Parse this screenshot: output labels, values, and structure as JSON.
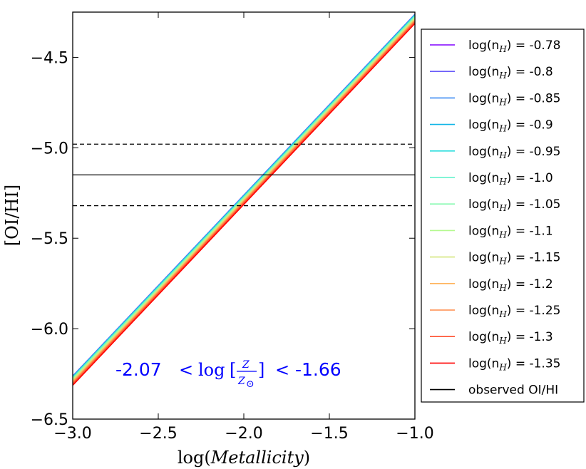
{
  "chart_data": {
    "type": "line",
    "xlabel": "log(Metallicity)",
    "ylabel": "[OI/HI]",
    "xlim": [
      -3.0,
      -1.0
    ],
    "ylim": [
      -6.5,
      -4.25
    ],
    "xticks": [
      -3.0,
      -2.5,
      -2.0,
      -1.5,
      -1.0
    ],
    "xtick_labels": [
      "−3.0",
      "−2.5",
      "−2.0",
      "−1.5",
      "−1.0"
    ],
    "yticks": [
      -6.5,
      -6.0,
      -5.5,
      -5.0,
      -4.5
    ],
    "ytick_labels": [
      "−6.5",
      "−6.0",
      "−5.5",
      "−5.0",
      "−4.5"
    ],
    "series": [
      {
        "name": "log(n_H) = -0.78",
        "label_prefix": "log(n",
        "label_sub": "H",
        "label_suffix": ") = -0.78",
        "color": "#8000ff",
        "x": [
          -3.0,
          -1.0
        ],
        "y": [
          -6.262,
          -4.262
        ]
      },
      {
        "name": "log(n_H) = -0.8",
        "label_prefix": "log(n",
        "label_sub": "H",
        "label_suffix": ") = -0.8",
        "color": "#6a5cf9",
        "x": [
          -3.0,
          -1.0
        ],
        "y": [
          -6.263,
          -4.263
        ]
      },
      {
        "name": "log(n_H) = -0.85",
        "label_prefix": "log(n",
        "label_sub": "H",
        "label_suffix": ") = -0.85",
        "color": "#3d8bf3",
        "x": [
          -3.0,
          -1.0
        ],
        "y": [
          -6.264,
          -4.264
        ]
      },
      {
        "name": "log(n_H) = -0.9",
        "label_prefix": "log(n",
        "label_sub": "H",
        "label_suffix": ") = -0.9",
        "color": "#0fb5e6",
        "x": [
          -3.0,
          -1.0
        ],
        "y": [
          -6.265,
          -4.265
        ]
      },
      {
        "name": "log(n_H) = -0.95",
        "label_prefix": "log(n",
        "label_sub": "H",
        "label_suffix": ") = -0.95",
        "color": "#2adddd",
        "x": [
          -3.0,
          -1.0
        ],
        "y": [
          -6.268,
          -4.268
        ]
      },
      {
        "name": "log(n_H) = -1.0",
        "label_prefix": "log(n",
        "label_sub": "H",
        "label_suffix": ") = -1.0",
        "color": "#58f0c8",
        "x": [
          -3.0,
          -1.0
        ],
        "y": [
          -6.272,
          -4.272
        ]
      },
      {
        "name": "log(n_H) = -1.05",
        "label_prefix": "log(n",
        "label_sub": "H",
        "label_suffix": ") = -1.05",
        "color": "#86f9b0",
        "x": [
          -3.0,
          -1.0
        ],
        "y": [
          -6.276,
          -4.276
        ]
      },
      {
        "name": "log(n_H) = -1.1",
        "label_prefix": "log(n",
        "label_sub": "H",
        "label_suffix": ") = -1.1",
        "color": "#b4f98f",
        "x": [
          -3.0,
          -1.0
        ],
        "y": [
          -6.281,
          -4.281
        ]
      },
      {
        "name": "log(n_H) = -1.15",
        "label_prefix": "log(n",
        "label_sub": "H",
        "label_suffix": ") = -1.15",
        "color": "#d5e67e",
        "x": [
          -3.0,
          -1.0
        ],
        "y": [
          -6.286,
          -4.286
        ]
      },
      {
        "name": "log(n_H) = -1.2",
        "label_prefix": "log(n",
        "label_sub": "H",
        "label_suffix": ") = -1.2",
        "color": "#ffb45c",
        "x": [
          -3.0,
          -1.0
        ],
        "y": [
          -6.292,
          -4.292
        ]
      },
      {
        "name": "log(n_H) = -1.25",
        "label_prefix": "log(n",
        "label_sub": "H",
        "label_suffix": ") = -1.25",
        "color": "#ff8b48",
        "x": [
          -3.0,
          -1.0
        ],
        "y": [
          -6.298,
          -4.298
        ]
      },
      {
        "name": "log(n_H) = -1.3",
        "label_prefix": "log(n",
        "label_sub": "H",
        "label_suffix": ") = -1.3",
        "color": "#ff5030",
        "x": [
          -3.0,
          -1.0
        ],
        "y": [
          -6.305,
          -4.305
        ]
      },
      {
        "name": "log(n_H) = -1.35",
        "label_prefix": "log(n",
        "label_sub": "H",
        "label_suffix": ") = -1.35",
        "color": "#ff0000",
        "x": [
          -3.0,
          -1.0
        ],
        "y": [
          -6.313,
          -4.313
        ]
      }
    ],
    "observed": {
      "label": "observed OI/HI",
      "value": -5.15,
      "upper": -4.98,
      "lower": -5.32,
      "color": "#000000"
    },
    "annotation": {
      "left": "-2.07",
      "op1": "<",
      "log": "log",
      "frac_num": "Z",
      "frac_den": "Z",
      "sun": "⊙",
      "op2": "<",
      "right": "-1.66",
      "color": "#0000ff"
    },
    "legend_position": "right-outside"
  }
}
